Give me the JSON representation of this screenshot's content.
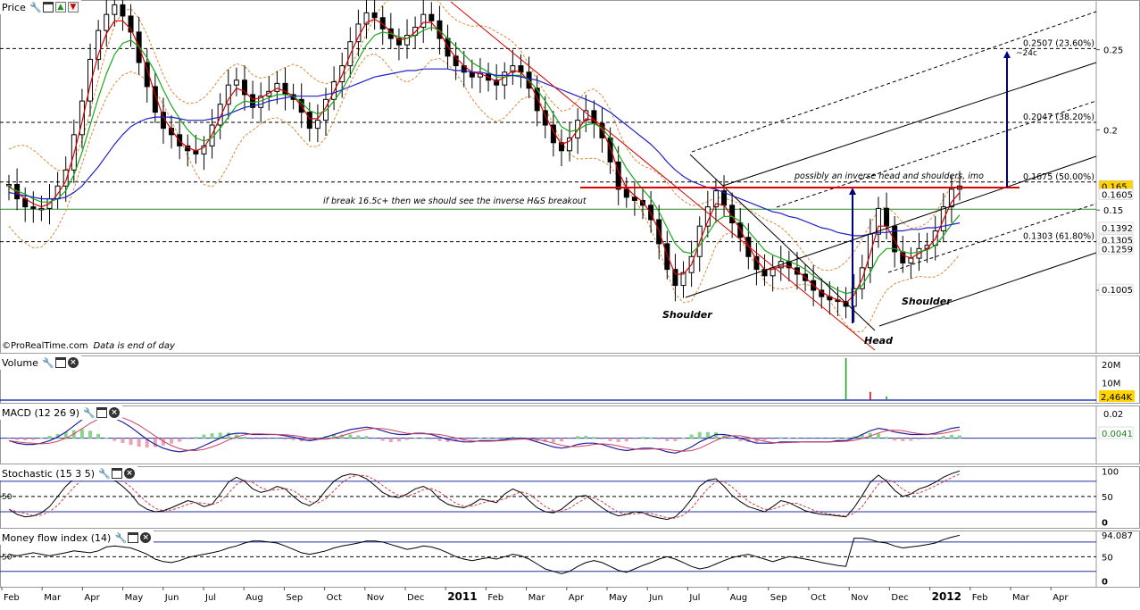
{
  "panels": {
    "price": {
      "title": "Price"
    },
    "volume": {
      "title": "Volume"
    },
    "macd": {
      "title": "MACD (12 26 9)"
    },
    "stochastic": {
      "title": "Stochastic (15 3 5)"
    },
    "mfi": {
      "title": "Money flow index (14)"
    }
  },
  "credit": {
    "source": "©ProRealTime.com",
    "note": "Data is end of day"
  },
  "chart_data": {
    "type": "line",
    "title": "",
    "price_axis": {
      "ticks": [
        "0.25",
        "0.2",
        "0.15",
        "0.1"
      ],
      "tick_values": [
        0.25,
        0.2,
        0.15,
        0.1
      ],
      "ylim": [
        0.061,
        0.281
      ],
      "value_labels": [
        {
          "text": "0.165",
          "value": 0.165,
          "color": "#ffd400"
        },
        {
          "text": "0.1605",
          "value": 0.16,
          "color": "#ffffff"
        },
        {
          "text": "0.1392",
          "value": 0.139,
          "color": "#ffffff"
        },
        {
          "text": "0.1305",
          "value": 0.1315,
          "color": "#ffffff"
        },
        {
          "text": "0.1259",
          "value": 0.126,
          "color": "#ffffff"
        },
        {
          "text": "0.1005",
          "value": 0.1005,
          "color": "#ffffff"
        }
      ]
    },
    "x_axis": {
      "labels": [
        "Feb",
        "Mar",
        "Apr",
        "May",
        "Jun",
        "Jul",
        "Aug",
        "Sep",
        "Oct",
        "Nov",
        "Dec",
        "2011",
        "Feb",
        "Mar",
        "Apr",
        "May",
        "Jun",
        "Jul",
        "Aug",
        "Sep",
        "Oct",
        "Nov",
        "Dec",
        "2012",
        "Feb",
        "Mar",
        "Apr"
      ],
      "bold": [
        "2011",
        "2012"
      ]
    },
    "series": [
      {
        "name": "Price (weekly)",
        "color": "#000000",
        "values": [
          0.166,
          0.157,
          0.152,
          0.151,
          0.151,
          0.157,
          0.165,
          0.175,
          0.197,
          0.218,
          0.244,
          0.262,
          0.272,
          0.278,
          0.271,
          0.261,
          0.242,
          0.227,
          0.211,
          0.201,
          0.197,
          0.19,
          0.187,
          0.185,
          0.19,
          0.203,
          0.216,
          0.228,
          0.231,
          0.222,
          0.214,
          0.221,
          0.224,
          0.229,
          0.222,
          0.219,
          0.211,
          0.201,
          0.206,
          0.219,
          0.23,
          0.24,
          0.255,
          0.266,
          0.273,
          0.27,
          0.263,
          0.257,
          0.253,
          0.259,
          0.264,
          0.272,
          0.268,
          0.257,
          0.246,
          0.24,
          0.236,
          0.233,
          0.235,
          0.231,
          0.228,
          0.236,
          0.24,
          0.236,
          0.226,
          0.212,
          0.203,
          0.192,
          0.187,
          0.195,
          0.206,
          0.212,
          0.204,
          0.195,
          0.18,
          0.163,
          0.158,
          0.156,
          0.153,
          0.144,
          0.129,
          0.113,
          0.103,
          0.111,
          0.121,
          0.14,
          0.152,
          0.162,
          0.153,
          0.142,
          0.133,
          0.121,
          0.113,
          0.109,
          0.114,
          0.118,
          0.114,
          0.11,
          0.106,
          0.1,
          0.096,
          0.094,
          0.093,
          0.09,
          0.101,
          0.114,
          0.135,
          0.151,
          0.14,
          0.124,
          0.117,
          0.12,
          0.126,
          0.128,
          0.137,
          0.152,
          0.163,
          0.165
        ]
      },
      {
        "name": "MA short",
        "color": "#d40000",
        "values": [
          0.165,
          0.161,
          0.157,
          0.154,
          0.152,
          0.154,
          0.16,
          0.168,
          0.185,
          0.205,
          0.228,
          0.247,
          0.26,
          0.268,
          0.268,
          0.263,
          0.252,
          0.238,
          0.222,
          0.208,
          0.2,
          0.193,
          0.189,
          0.187,
          0.189,
          0.197,
          0.208,
          0.219,
          0.226,
          0.224,
          0.219,
          0.22,
          0.223,
          0.226,
          0.224,
          0.221,
          0.215,
          0.207,
          0.207,
          0.214,
          0.224,
          0.234,
          0.247,
          0.258,
          0.267,
          0.269,
          0.266,
          0.261,
          0.256,
          0.257,
          0.261,
          0.267,
          0.267,
          0.261,
          0.252,
          0.245,
          0.24,
          0.236,
          0.235,
          0.233,
          0.23,
          0.233,
          0.237,
          0.236,
          0.23,
          0.22,
          0.209,
          0.199,
          0.191,
          0.193,
          0.2,
          0.207,
          0.206,
          0.2,
          0.189,
          0.174,
          0.164,
          0.159,
          0.155,
          0.148,
          0.137,
          0.122,
          0.11,
          0.11,
          0.116,
          0.13,
          0.143,
          0.154,
          0.153,
          0.146,
          0.138,
          0.128,
          0.119,
          0.113,
          0.113,
          0.115,
          0.115,
          0.112,
          0.108,
          0.103,
          0.099,
          0.096,
          0.094,
          0.092,
          0.097,
          0.107,
          0.123,
          0.14,
          0.14,
          0.131,
          0.122,
          0.12,
          0.123,
          0.126,
          0.132,
          0.144,
          0.155,
          0.161
        ]
      },
      {
        "name": "MA medium",
        "color": "#18a818",
        "values": [
          0.164,
          0.162,
          0.16,
          0.157,
          0.155,
          0.155,
          0.157,
          0.162,
          0.172,
          0.186,
          0.203,
          0.22,
          0.235,
          0.247,
          0.254,
          0.256,
          0.252,
          0.245,
          0.236,
          0.225,
          0.215,
          0.207,
          0.2,
          0.195,
          0.193,
          0.195,
          0.201,
          0.208,
          0.215,
          0.218,
          0.217,
          0.218,
          0.22,
          0.222,
          0.222,
          0.221,
          0.217,
          0.212,
          0.21,
          0.212,
          0.218,
          0.225,
          0.234,
          0.244,
          0.253,
          0.259,
          0.261,
          0.26,
          0.258,
          0.257,
          0.259,
          0.262,
          0.264,
          0.262,
          0.257,
          0.252,
          0.247,
          0.242,
          0.239,
          0.236,
          0.233,
          0.233,
          0.234,
          0.234,
          0.231,
          0.225,
          0.218,
          0.21,
          0.202,
          0.199,
          0.2,
          0.203,
          0.204,
          0.201,
          0.195,
          0.185,
          0.176,
          0.169,
          0.163,
          0.157,
          0.149,
          0.139,
          0.129,
          0.124,
          0.123,
          0.128,
          0.135,
          0.143,
          0.146,
          0.146,
          0.143,
          0.137,
          0.131,
          0.125,
          0.122,
          0.12,
          0.118,
          0.116,
          0.113,
          0.109,
          0.106,
          0.103,
          0.1,
          0.098,
          0.099,
          0.103,
          0.111,
          0.121,
          0.126,
          0.126,
          0.124,
          0.123,
          0.124,
          0.125,
          0.128,
          0.134,
          0.141,
          0.147
        ]
      },
      {
        "name": "MA long",
        "color": "#2020c8",
        "values": [
          0.161,
          0.16,
          0.159,
          0.158,
          0.157,
          0.157,
          0.157,
          0.158,
          0.161,
          0.165,
          0.171,
          0.177,
          0.184,
          0.191,
          0.197,
          0.202,
          0.205,
          0.207,
          0.208,
          0.208,
          0.208,
          0.207,
          0.206,
          0.206,
          0.206,
          0.207,
          0.208,
          0.21,
          0.212,
          0.214,
          0.215,
          0.216,
          0.218,
          0.219,
          0.22,
          0.221,
          0.221,
          0.221,
          0.221,
          0.222,
          0.223,
          0.225,
          0.227,
          0.229,
          0.231,
          0.233,
          0.234,
          0.235,
          0.236,
          0.237,
          0.237,
          0.238,
          0.238,
          0.238,
          0.238,
          0.237,
          0.237,
          0.236,
          0.236,
          0.235,
          0.234,
          0.234,
          0.234,
          0.233,
          0.232,
          0.231,
          0.229,
          0.227,
          0.225,
          0.223,
          0.221,
          0.219,
          0.217,
          0.214,
          0.211,
          0.207,
          0.203,
          0.199,
          0.195,
          0.191,
          0.186,
          0.18,
          0.175,
          0.171,
          0.168,
          0.166,
          0.164,
          0.163,
          0.161,
          0.159,
          0.157,
          0.155,
          0.153,
          0.151,
          0.149,
          0.148,
          0.146,
          0.145,
          0.143,
          0.141,
          0.139,
          0.138,
          0.136,
          0.135,
          0.134,
          0.134,
          0.135,
          0.136,
          0.136,
          0.137,
          0.137,
          0.138,
          0.138,
          0.139,
          0.139,
          0.14,
          0.141,
          0.142
        ]
      },
      {
        "name": "Bollinger band",
        "color": "#d88a3a",
        "dashed": true
      }
    ],
    "volume_axis": {
      "ticks": [
        "20M",
        "10M"
      ],
      "tick_values": [
        20,
        10
      ],
      "ylim": [
        0,
        24
      ],
      "value_label": {
        "text": "2,464K",
        "value": 2.46
      }
    },
    "volume_spikes": [
      {
        "x": 103,
        "value": 23.5,
        "color": "#10a010"
      },
      {
        "x": 106,
        "value": 5,
        "color": "#cc0000"
      },
      {
        "x": 108,
        "value": 2.5,
        "color": "#10a010"
      }
    ],
    "macd": {
      "ticks": [
        "0.02"
      ],
      "tick_values": [
        0.02
      ],
      "ylim": [
        -0.019,
        0.025
      ],
      "value_labels": [
        {
          "text": "0.0041",
          "value": 0.0041
        }
      ],
      "zero": 0,
      "values": [
        -0.002,
        -0.004,
        -0.005,
        -0.005,
        -0.004,
        -0.002,
        0.001,
        0.005,
        0.01,
        0.015,
        0.018,
        0.019,
        0.018,
        0.016,
        0.013,
        0.009,
        0.004,
        -0.001,
        -0.005,
        -0.008,
        -0.01,
        -0.011,
        -0.01,
        -0.009,
        -0.006,
        -0.003,
        0.0,
        0.003,
        0.004,
        0.004,
        0.003,
        0.003,
        0.003,
        0.003,
        0.002,
        0.001,
        -0.001,
        -0.002,
        -0.001,
        0.001,
        0.003,
        0.005,
        0.007,
        0.008,
        0.009,
        0.008,
        0.006,
        0.004,
        0.003,
        0.003,
        0.004,
        0.004,
        0.003,
        0.001,
        -0.001,
        -0.002,
        -0.003,
        -0.003,
        -0.002,
        -0.002,
        -0.002,
        -0.001,
        0.0,
        0.0,
        -0.001,
        -0.003,
        -0.005,
        -0.007,
        -0.008,
        -0.007,
        -0.005,
        -0.004,
        -0.004,
        -0.005,
        -0.007,
        -0.009,
        -0.01,
        -0.009,
        -0.008,
        -0.008,
        -0.009,
        -0.011,
        -0.012,
        -0.01,
        -0.007,
        -0.003,
        0.0,
        0.003,
        0.003,
        0.002,
        0.0,
        -0.002,
        -0.004,
        -0.004,
        -0.004,
        -0.003,
        -0.003,
        -0.003,
        -0.003,
        -0.003,
        -0.003,
        -0.003,
        -0.002,
        -0.002,
        0.0,
        0.003,
        0.006,
        0.008,
        0.007,
        0.005,
        0.004,
        0.003,
        0.003,
        0.003,
        0.004,
        0.006,
        0.008,
        0.009
      ]
    },
    "stochastic": {
      "ticks": [
        "100",
        "50",
        "0"
      ],
      "tick_values": [
        100,
        50,
        0
      ],
      "ylim": [
        -8,
        106
      ],
      "left_label": "50",
      "levels": [
        80,
        50,
        20
      ],
      "values": [
        25,
        15,
        10,
        12,
        18,
        30,
        50,
        70,
        85,
        92,
        95,
        95,
        90,
        82,
        70,
        55,
        35,
        25,
        20,
        22,
        28,
        35,
        42,
        38,
        30,
        35,
        55,
        78,
        88,
        80,
        65,
        58,
        62,
        70,
        65,
        50,
        38,
        32,
        42,
        62,
        80,
        90,
        94,
        92,
        85,
        72,
        58,
        50,
        48,
        55,
        65,
        70,
        62,
        45,
        35,
        30,
        28,
        35,
        45,
        42,
        38,
        55,
        65,
        58,
        42,
        28,
        20,
        18,
        25,
        38,
        50,
        52,
        40,
        28,
        18,
        12,
        15,
        20,
        18,
        12,
        8,
        5,
        10,
        25,
        45,
        70,
        82,
        85,
        70,
        52,
        40,
        30,
        25,
        20,
        30,
        42,
        38,
        30,
        22,
        18,
        15,
        14,
        12,
        10,
        28,
        52,
        78,
        92,
        80,
        62,
        50,
        55,
        65,
        70,
        78,
        88,
        95,
        100
      ]
    },
    "mfi": {
      "ticks": [
        "94.087",
        "50",
        "0"
      ],
      "tick_values": [
        94.087,
        50,
        0
      ],
      "ylim": [
        -8,
        100
      ],
      "left_label": "50",
      "levels": [
        80,
        50,
        20
      ],
      "values": [
        55,
        52,
        55,
        58,
        55,
        52,
        55,
        58,
        62,
        60,
        58,
        62,
        70,
        72,
        70,
        68,
        62,
        55,
        45,
        40,
        38,
        42,
        48,
        52,
        55,
        58,
        62,
        68,
        72,
        78,
        82,
        82,
        80,
        78,
        72,
        65,
        58,
        55,
        58,
        62,
        68,
        72,
        75,
        78,
        82,
        82,
        80,
        75,
        70,
        65,
        68,
        72,
        70,
        65,
        58,
        50,
        45,
        42,
        45,
        48,
        45,
        50,
        55,
        52,
        45,
        35,
        25,
        20,
        15,
        20,
        30,
        38,
        42,
        38,
        30,
        22,
        18,
        25,
        32,
        38,
        45,
        50,
        45,
        38,
        30,
        25,
        28,
        35,
        42,
        48,
        52,
        55,
        50,
        45,
        40,
        45,
        50,
        48,
        45,
        42,
        38,
        35,
        32,
        30,
        88,
        88,
        85,
        80,
        78,
        72,
        68,
        70,
        72,
        75,
        78,
        85,
        90,
        94
      ]
    },
    "annotations": [
      {
        "text": "if break 16.5c+ then we should see the inverse H&S breakout"
      },
      {
        "text": "possibly an  inverse head and shoulders, imo"
      },
      {
        "text": "Shoulder"
      },
      {
        "text": "Head"
      },
      {
        "text": "Shoulder"
      },
      {
        "text": "~24c"
      }
    ],
    "fibonacci": [
      {
        "text": "0.2507 (23.60%)",
        "value": 0.2507
      },
      {
        "text": "0.2047 (38.20%)",
        "value": 0.2047
      },
      {
        "text": "0.1675 (50.00%)",
        "value": 0.1675
      },
      {
        "text": "0.1303 (61.80%)",
        "value": 0.1303
      }
    ],
    "neckline": {
      "value": 0.1645,
      "color": "#e00000"
    },
    "support_line": {
      "value": 0.1505,
      "color": "#2a8a2a"
    },
    "grid": true,
    "legend": "none"
  }
}
